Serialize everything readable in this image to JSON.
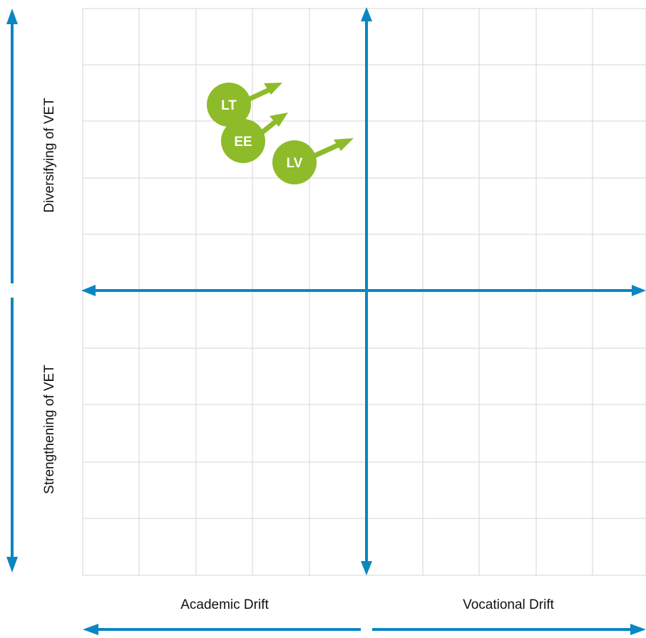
{
  "labels": {
    "top_left": "Diversifying of VET",
    "bottom_left": "Strengthening of VET",
    "bottom_left_x": "Academic Drift",
    "bottom_right_x": "Vocational Drift"
  },
  "countries": [
    {
      "code": "LT",
      "position": "upper-left quadrant, highest"
    },
    {
      "code": "EE",
      "position": "upper-left quadrant, below LT"
    },
    {
      "code": "LV",
      "position": "upper-left quadrant, right of EE"
    }
  ],
  "colors": {
    "axis": "#0a86c0",
    "country_marker": "#8dbb2a",
    "grid": "#d6d6d6"
  }
}
